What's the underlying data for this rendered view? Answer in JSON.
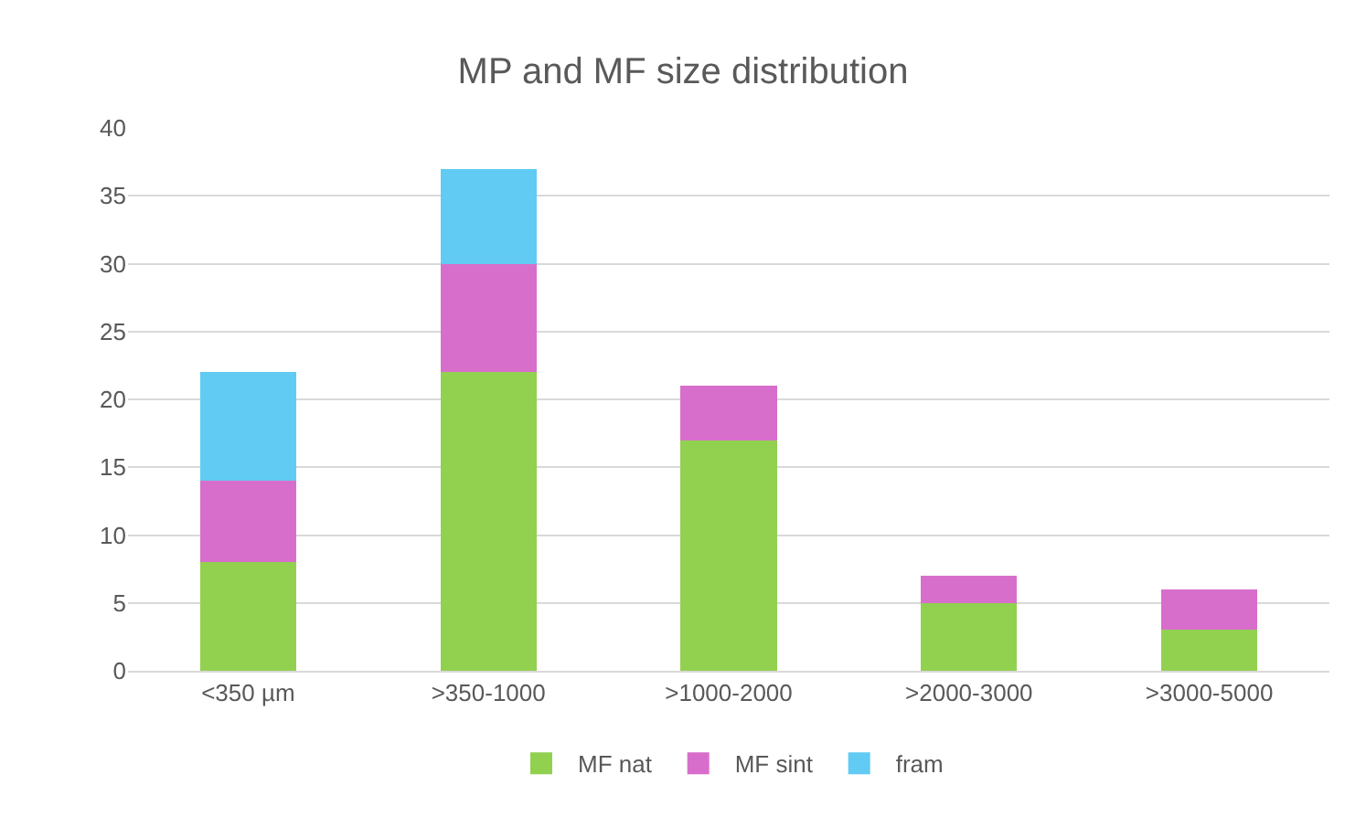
{
  "chart_data": {
    "type": "bar",
    "title": "MP and MF size distribution",
    "stacked": true,
    "categories": [
      "<350 µm",
      ">350-1000",
      ">1000-2000",
      ">2000-3000",
      ">3000-5000"
    ],
    "series": [
      {
        "name": "MF nat",
        "color": "#92d050",
        "values": [
          8,
          22,
          17,
          5,
          3
        ]
      },
      {
        "name": "MF sint",
        "color": "#d86ecc",
        "values": [
          6,
          8,
          4,
          2,
          3
        ]
      },
      {
        "name": "fram",
        "color": "#61cbf3",
        "values": [
          8,
          7,
          0,
          0,
          0
        ]
      }
    ],
    "ylim": [
      0,
      40
    ],
    "yticks": [
      0,
      5,
      10,
      15,
      20,
      25,
      30,
      35,
      40
    ],
    "grid": "y",
    "legend": "bottom"
  }
}
